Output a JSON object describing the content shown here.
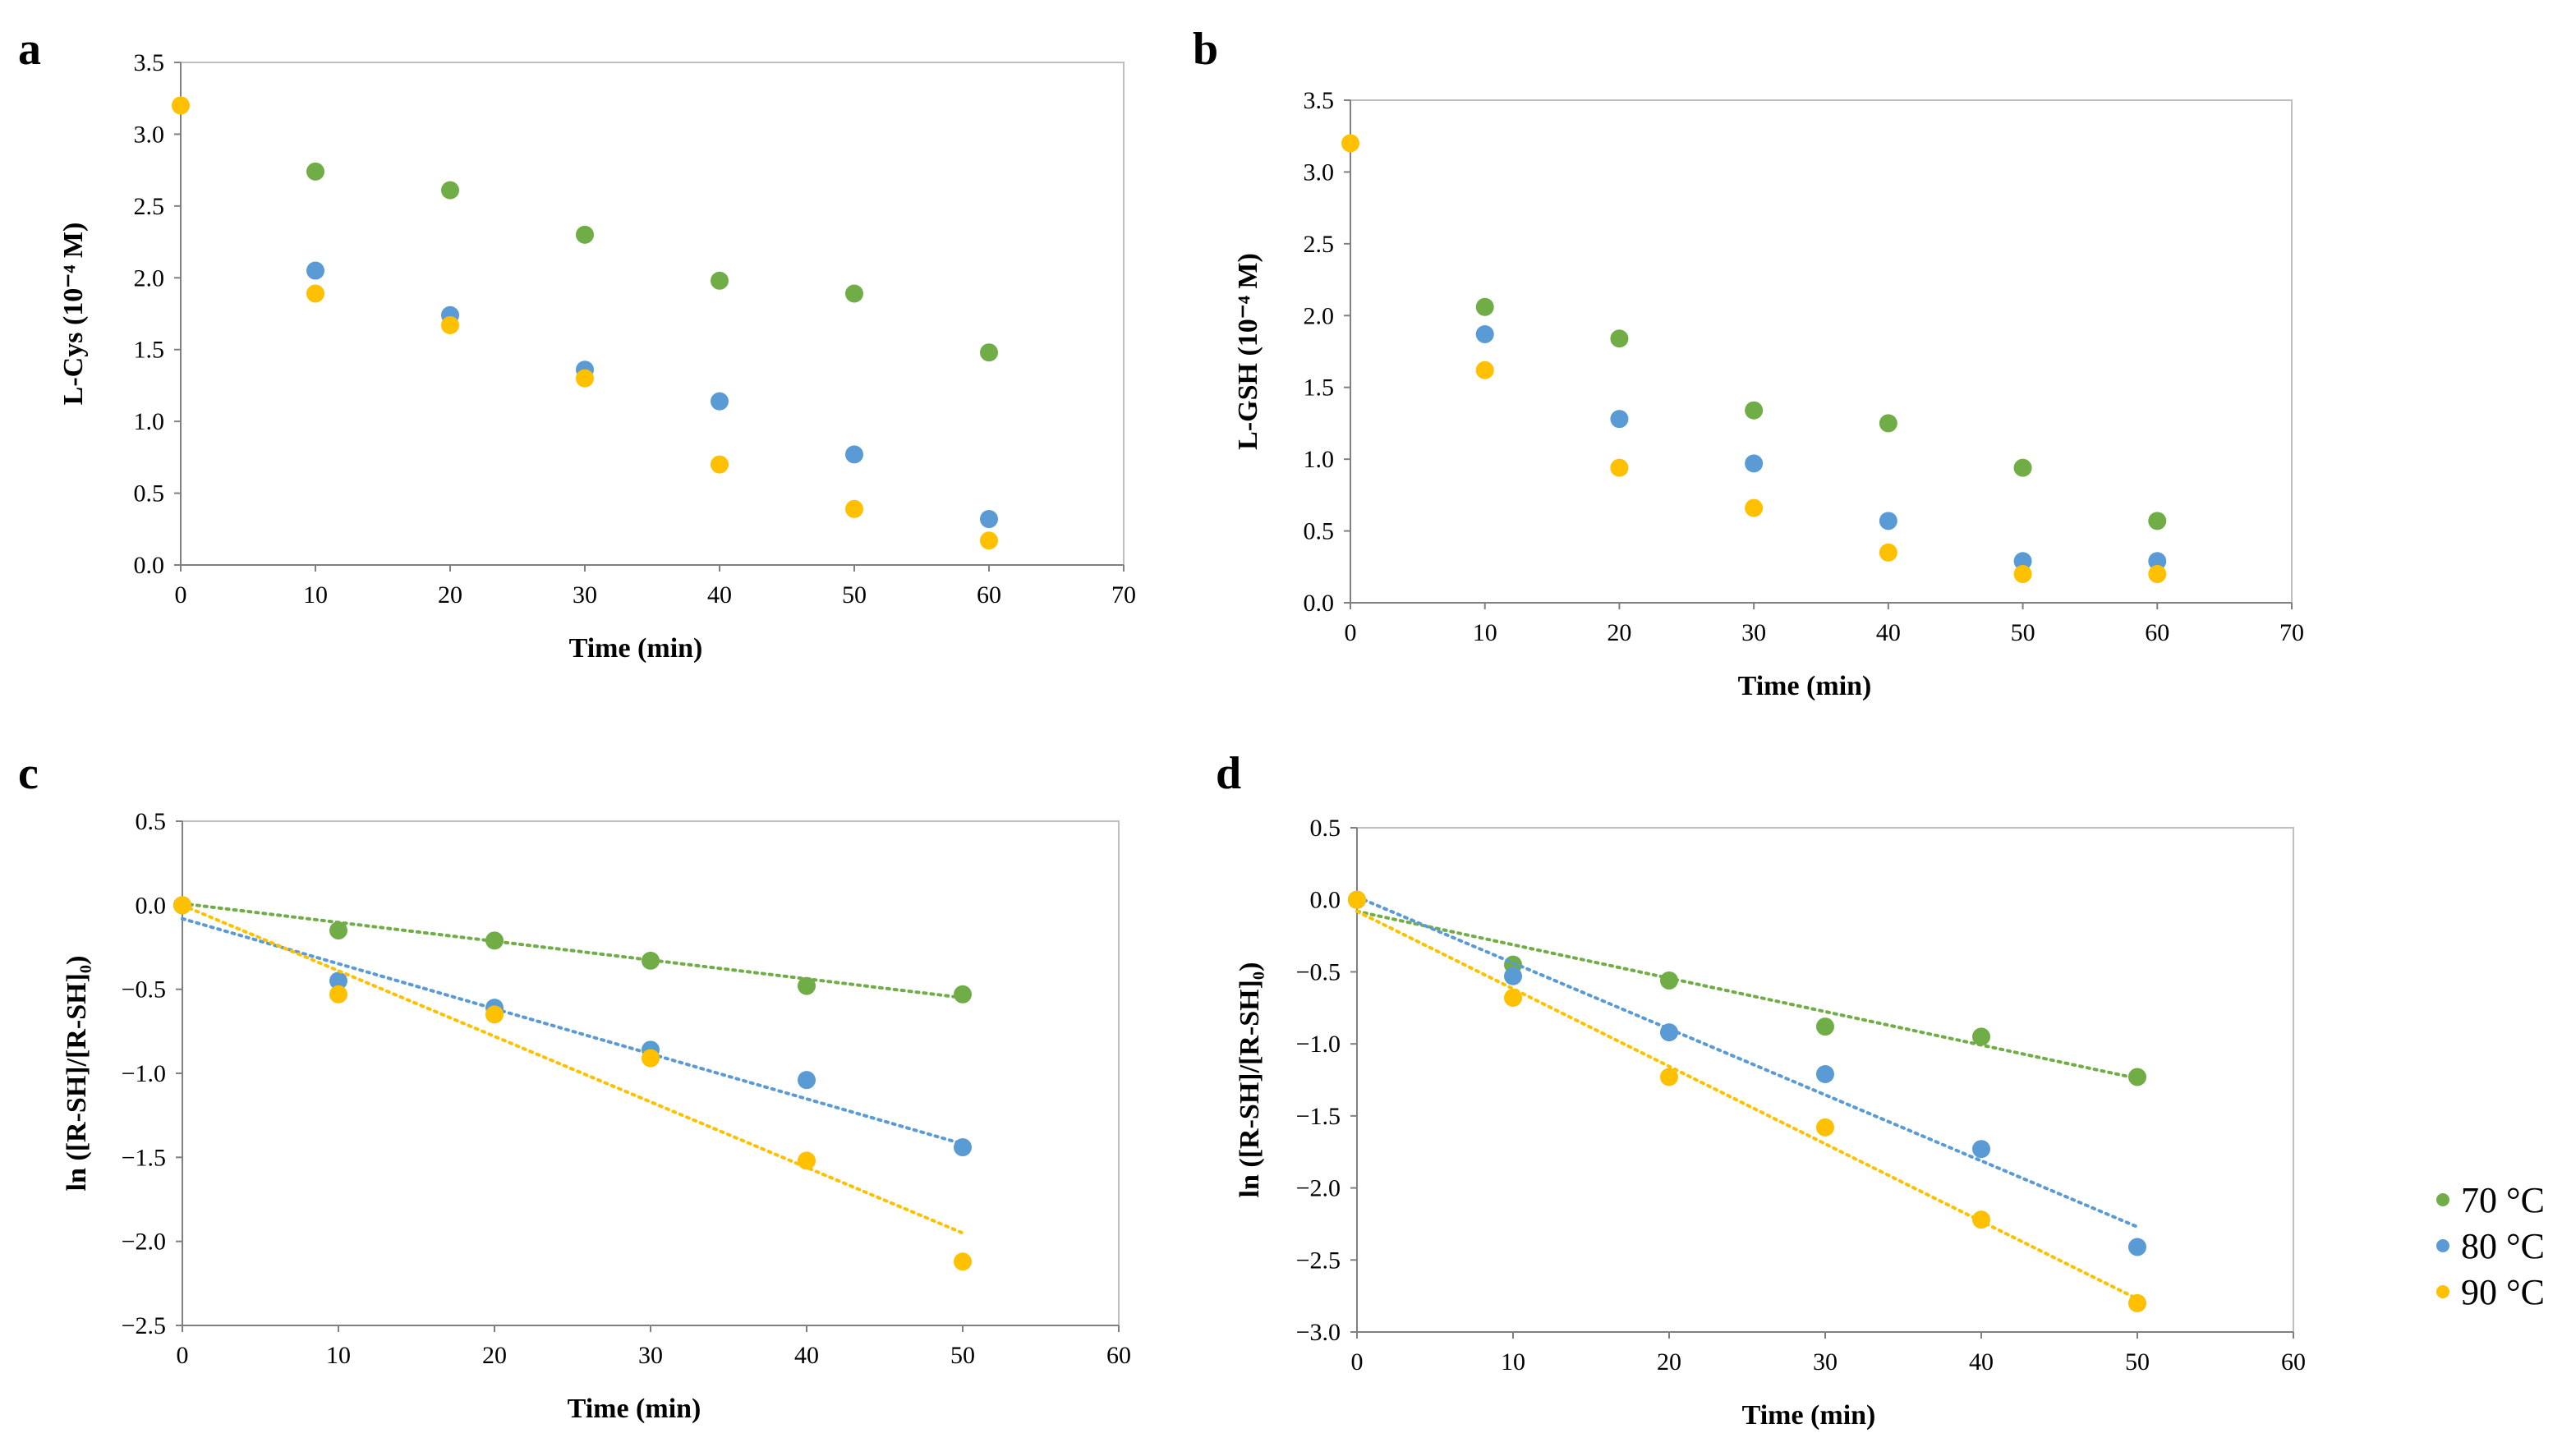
{
  "figure": {
    "panel_labels": [
      "a",
      "b",
      "c",
      "d"
    ]
  },
  "colors": {
    "70": "#70AD47",
    "80": "#5B9BD5",
    "90": "#FFC000",
    "frame": "#BFBFBF",
    "axis": "#808080"
  },
  "legend": [
    "70 °C",
    "80 °C",
    "90 °C"
  ],
  "chart_data": [
    {
      "panel": "a",
      "type": "scatter",
      "xlabel": "Time (min)",
      "ylabel": "L-Cys (10⁻⁴ M)",
      "xlim": [
        0,
        70
      ],
      "ylim": [
        0,
        3.5
      ],
      "xticks": [
        "0",
        "10",
        "20",
        "30",
        "40",
        "50",
        "60",
        "70"
      ],
      "yticks": [
        "0.0",
        "0.5",
        "1.0",
        "1.5",
        "2.0",
        "2.5",
        "3.0",
        "3.5"
      ],
      "series": [
        {
          "name": "70 °C",
          "x": [
            10,
            20,
            30,
            40,
            50,
            60
          ],
          "y": [
            2.74,
            2.61,
            2.3,
            1.98,
            1.89,
            1.48
          ]
        },
        {
          "name": "80 °C",
          "x": [
            10,
            20,
            30,
            40,
            50,
            60
          ],
          "y": [
            2.05,
            1.74,
            1.36,
            1.14,
            0.77,
            0.32
          ]
        },
        {
          "name": "90 °C",
          "x": [
            0,
            10,
            20,
            30,
            40,
            50,
            60
          ],
          "y": [
            3.2,
            1.89,
            1.67,
            1.3,
            0.7,
            0.39,
            0.17
          ]
        }
      ]
    },
    {
      "panel": "b",
      "type": "scatter",
      "xlabel": "Time (min)",
      "ylabel": "L-GSH (10⁻⁴ M)",
      "xlim": [
        0,
        70
      ],
      "ylim": [
        0,
        3.5
      ],
      "xticks": [
        "0",
        "10",
        "20",
        "30",
        "40",
        "50",
        "60",
        "70"
      ],
      "yticks": [
        "0.0",
        "0.5",
        "1.0",
        "1.5",
        "2.0",
        "2.5",
        "3.0",
        "3.5"
      ],
      "series": [
        {
          "name": "70 °C",
          "x": [
            10,
            20,
            30,
            40,
            50,
            60
          ],
          "y": [
            2.06,
            1.84,
            1.34,
            1.25,
            0.94,
            0.57
          ]
        },
        {
          "name": "80 °C",
          "x": [
            10,
            20,
            30,
            40,
            50,
            60
          ],
          "y": [
            1.87,
            1.28,
            0.97,
            0.57,
            0.29,
            0.29
          ]
        },
        {
          "name": "90 °C",
          "x": [
            0,
            10,
            20,
            30,
            40,
            50,
            60
          ],
          "y": [
            3.2,
            1.62,
            0.94,
            0.66,
            0.35,
            0.2,
            0.2
          ]
        }
      ]
    },
    {
      "panel": "c",
      "type": "scatter",
      "xlabel": "Time (min)",
      "ylabel": "ln ([R-SH]/[R-SH]₀)",
      "xlim": [
        0,
        60
      ],
      "ylim": [
        -2.5,
        0.5
      ],
      "xticks": [
        "0",
        "10",
        "20",
        "30",
        "40",
        "50",
        "60"
      ],
      "yticks": [
        "−2.5",
        "−2.0",
        "−1.5",
        "−1.0",
        "−0.5",
        "0.0",
        "0.5"
      ],
      "series": [
        {
          "name": "70 °C",
          "x": [
            0,
            10,
            20,
            30,
            40,
            50
          ],
          "y": [
            0,
            -0.15,
            -0.21,
            -0.33,
            -0.48,
            -0.53
          ],
          "trend": [
            [
              0,
              0.01
            ],
            [
              50,
              -0.55
            ]
          ]
        },
        {
          "name": "80 °C",
          "x": [
            0,
            10,
            20,
            30,
            40,
            50
          ],
          "y": [
            0,
            -0.45,
            -0.61,
            -0.86,
            -1.04,
            -1.44
          ],
          "trend": [
            [
              0,
              -0.08
            ],
            [
              50,
              -1.42
            ]
          ]
        },
        {
          "name": "90 °C",
          "x": [
            0,
            10,
            20,
            30,
            40,
            50
          ],
          "y": [
            0,
            -0.53,
            -0.65,
            -0.91,
            -1.52,
            -2.12
          ],
          "trend": [
            [
              0,
              0.0
            ],
            [
              50,
              -1.95
            ]
          ]
        }
      ]
    },
    {
      "panel": "d",
      "type": "scatter",
      "xlabel": "Time (min)",
      "ylabel": "ln ([R-SH]/[R-SH]₀)",
      "xlim": [
        0,
        60
      ],
      "ylim": [
        -3.0,
        0.5
      ],
      "xticks": [
        "0",
        "10",
        "20",
        "30",
        "40",
        "50",
        "60"
      ],
      "yticks": [
        "−3.0",
        "−2.5",
        "−2.0",
        "−1.5",
        "−1.0",
        "−0.5",
        "0.0",
        "0.5"
      ],
      "series": [
        {
          "name": "70 °C",
          "x": [
            0,
            10,
            20,
            30,
            40,
            50
          ],
          "y": [
            0,
            -0.45,
            -0.56,
            -0.88,
            -0.95,
            -1.23
          ],
          "trend": [
            [
              0,
              -0.08
            ],
            [
              50,
              -1.24
            ]
          ]
        },
        {
          "name": "80 °C",
          "x": [
            0,
            10,
            20,
            30,
            40,
            50
          ],
          "y": [
            0,
            -0.53,
            -0.92,
            -1.21,
            -1.73,
            -2.41
          ],
          "trend": [
            [
              0,
              0.02
            ],
            [
              50,
              -2.27
            ]
          ]
        },
        {
          "name": "90 °C",
          "x": [
            0,
            10,
            20,
            30,
            40,
            50
          ],
          "y": [
            0,
            -0.68,
            -1.23,
            -1.58,
            -2.22,
            -2.8
          ],
          "trend": [
            [
              0,
              -0.08
            ],
            [
              50,
              -2.77
            ]
          ]
        }
      ]
    }
  ]
}
